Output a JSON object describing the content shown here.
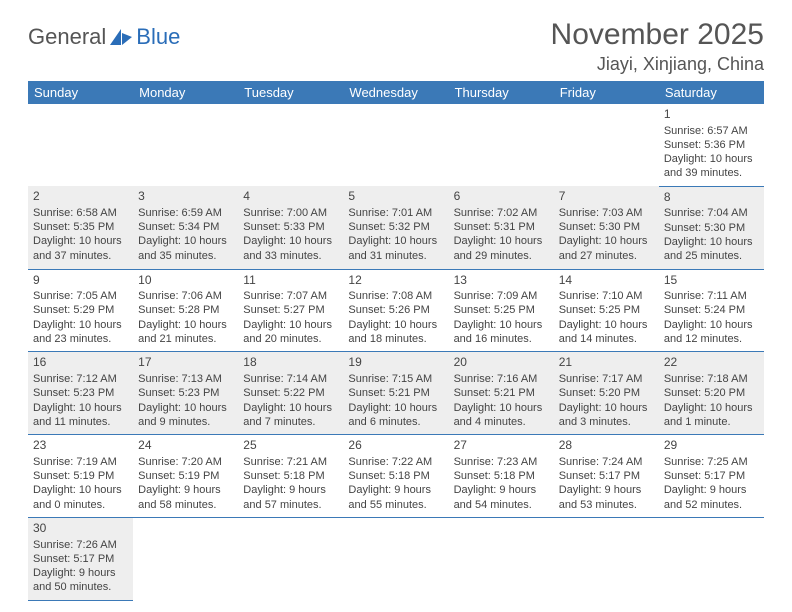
{
  "logo": {
    "general": "General",
    "blue": "Blue"
  },
  "title": "November 2025",
  "location": "Jiayi, Xinjiang, China",
  "colors": {
    "header_bg": "#3b79b7",
    "header_fg": "#ffffff",
    "row_alt_bg": "#eeeeee",
    "row_bg": "#ffffff",
    "border": "#3b79b7",
    "text": "#444444",
    "logo_gray": "#555555",
    "logo_blue": "#2a6db8"
  },
  "typography": {
    "title_fontsize": 30,
    "location_fontsize": 18,
    "header_fontsize": 13,
    "cell_fontsize": 11,
    "logo_fontsize": 22
  },
  "weekdays": [
    "Sunday",
    "Monday",
    "Tuesday",
    "Wednesday",
    "Thursday",
    "Friday",
    "Saturday"
  ],
  "weeks": [
    [
      null,
      null,
      null,
      null,
      null,
      null,
      {
        "d": "1",
        "sunrise": "6:57 AM",
        "sunset": "5:36 PM",
        "daylight": "10 hours and 39 minutes."
      }
    ],
    [
      {
        "d": "2",
        "sunrise": "6:58 AM",
        "sunset": "5:35 PM",
        "daylight": "10 hours and 37 minutes."
      },
      {
        "d": "3",
        "sunrise": "6:59 AM",
        "sunset": "5:34 PM",
        "daylight": "10 hours and 35 minutes."
      },
      {
        "d": "4",
        "sunrise": "7:00 AM",
        "sunset": "5:33 PM",
        "daylight": "10 hours and 33 minutes."
      },
      {
        "d": "5",
        "sunrise": "7:01 AM",
        "sunset": "5:32 PM",
        "daylight": "10 hours and 31 minutes."
      },
      {
        "d": "6",
        "sunrise": "7:02 AM",
        "sunset": "5:31 PM",
        "daylight": "10 hours and 29 minutes."
      },
      {
        "d": "7",
        "sunrise": "7:03 AM",
        "sunset": "5:30 PM",
        "daylight": "10 hours and 27 minutes."
      },
      {
        "d": "8",
        "sunrise": "7:04 AM",
        "sunset": "5:30 PM",
        "daylight": "10 hours and 25 minutes."
      }
    ],
    [
      {
        "d": "9",
        "sunrise": "7:05 AM",
        "sunset": "5:29 PM",
        "daylight": "10 hours and 23 minutes."
      },
      {
        "d": "10",
        "sunrise": "7:06 AM",
        "sunset": "5:28 PM",
        "daylight": "10 hours and 21 minutes."
      },
      {
        "d": "11",
        "sunrise": "7:07 AM",
        "sunset": "5:27 PM",
        "daylight": "10 hours and 20 minutes."
      },
      {
        "d": "12",
        "sunrise": "7:08 AM",
        "sunset": "5:26 PM",
        "daylight": "10 hours and 18 minutes."
      },
      {
        "d": "13",
        "sunrise": "7:09 AM",
        "sunset": "5:25 PM",
        "daylight": "10 hours and 16 minutes."
      },
      {
        "d": "14",
        "sunrise": "7:10 AM",
        "sunset": "5:25 PM",
        "daylight": "10 hours and 14 minutes."
      },
      {
        "d": "15",
        "sunrise": "7:11 AM",
        "sunset": "5:24 PM",
        "daylight": "10 hours and 12 minutes."
      }
    ],
    [
      {
        "d": "16",
        "sunrise": "7:12 AM",
        "sunset": "5:23 PM",
        "daylight": "10 hours and 11 minutes."
      },
      {
        "d": "17",
        "sunrise": "7:13 AM",
        "sunset": "5:23 PM",
        "daylight": "10 hours and 9 minutes."
      },
      {
        "d": "18",
        "sunrise": "7:14 AM",
        "sunset": "5:22 PM",
        "daylight": "10 hours and 7 minutes."
      },
      {
        "d": "19",
        "sunrise": "7:15 AM",
        "sunset": "5:21 PM",
        "daylight": "10 hours and 6 minutes."
      },
      {
        "d": "20",
        "sunrise": "7:16 AM",
        "sunset": "5:21 PM",
        "daylight": "10 hours and 4 minutes."
      },
      {
        "d": "21",
        "sunrise": "7:17 AM",
        "sunset": "5:20 PM",
        "daylight": "10 hours and 3 minutes."
      },
      {
        "d": "22",
        "sunrise": "7:18 AM",
        "sunset": "5:20 PM",
        "daylight": "10 hours and 1 minute."
      }
    ],
    [
      {
        "d": "23",
        "sunrise": "7:19 AM",
        "sunset": "5:19 PM",
        "daylight": "10 hours and 0 minutes."
      },
      {
        "d": "24",
        "sunrise": "7:20 AM",
        "sunset": "5:19 PM",
        "daylight": "9 hours and 58 minutes."
      },
      {
        "d": "25",
        "sunrise": "7:21 AM",
        "sunset": "5:18 PM",
        "daylight": "9 hours and 57 minutes."
      },
      {
        "d": "26",
        "sunrise": "7:22 AM",
        "sunset": "5:18 PM",
        "daylight": "9 hours and 55 minutes."
      },
      {
        "d": "27",
        "sunrise": "7:23 AM",
        "sunset": "5:18 PM",
        "daylight": "9 hours and 54 minutes."
      },
      {
        "d": "28",
        "sunrise": "7:24 AM",
        "sunset": "5:17 PM",
        "daylight": "9 hours and 53 minutes."
      },
      {
        "d": "29",
        "sunrise": "7:25 AM",
        "sunset": "5:17 PM",
        "daylight": "9 hours and 52 minutes."
      }
    ],
    [
      {
        "d": "30",
        "sunrise": "7:26 AM",
        "sunset": "5:17 PM",
        "daylight": "9 hours and 50 minutes."
      },
      null,
      null,
      null,
      null,
      null,
      null
    ]
  ],
  "labels": {
    "sunrise_prefix": "Sunrise: ",
    "sunset_prefix": "Sunset: ",
    "daylight_prefix": "Daylight: "
  }
}
